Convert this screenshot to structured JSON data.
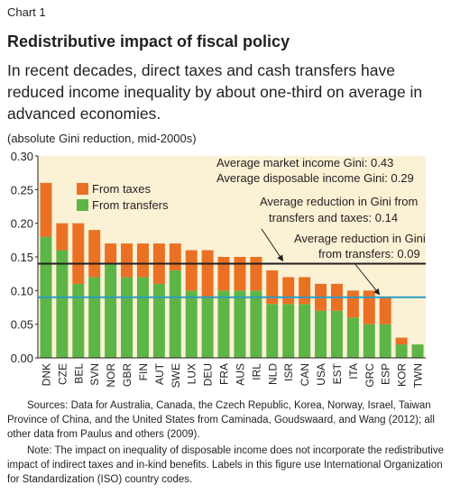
{
  "header": {
    "chart_number": "Chart 1",
    "title": "Redistributive impact of fiscal policy",
    "subtitle": "In recent decades, direct taxes and cash transfers have reduced income inequality by about one-third on average in advanced economies.",
    "units": "(absolute Gini reduction, mid-2000s)"
  },
  "colors": {
    "taxes": "#ea7124",
    "transfers": "#5eb547",
    "market_line": "#231f20",
    "transfers_line": "#2b9cc4",
    "panel": "#fbf1d5"
  },
  "chart_data": {
    "type": "bar",
    "stacked": true,
    "categories": [
      "DNK",
      "CZE",
      "BEL",
      "SVN",
      "NOR",
      "GBR",
      "FIN",
      "AUT",
      "SWE",
      "LUX",
      "DEU",
      "FRA",
      "AUS",
      "IRL",
      "NLD",
      "ISR",
      "CAN",
      "USA",
      "EST",
      "ITA",
      "GRC",
      "ESP",
      "KOR",
      "TWN"
    ],
    "series": [
      {
        "name": "From transfers",
        "values": [
          0.18,
          0.16,
          0.11,
          0.12,
          0.14,
          0.12,
          0.12,
          0.11,
          0.13,
          0.1,
          0.09,
          0.1,
          0.1,
          0.1,
          0.08,
          0.08,
          0.08,
          0.07,
          0.07,
          0.06,
          0.05,
          0.05,
          0.02,
          0.02
        ]
      },
      {
        "name": "From taxes",
        "values": [
          0.08,
          0.04,
          0.09,
          0.07,
          0.03,
          0.05,
          0.05,
          0.06,
          0.04,
          0.06,
          0.07,
          0.05,
          0.05,
          0.05,
          0.05,
          0.04,
          0.04,
          0.04,
          0.04,
          0.04,
          0.05,
          0.04,
          0.01,
          0.0
        ]
      }
    ],
    "ylim": [
      0,
      0.3
    ],
    "yticks": [
      "0.00",
      "0.05",
      "0.10",
      "0.15",
      "0.20",
      "0.25",
      "0.30"
    ],
    "reference_lines": [
      {
        "name": "Average reduction in Gini from transfers and taxes",
        "value": 0.14
      },
      {
        "name": "Average reduction in Gini from transfers",
        "value": 0.09
      }
    ],
    "annotations": {
      "market_gini": "Average market income Gini: 0.43",
      "disposable_gini": "Average disposable income Gini: 0.29",
      "total_reduction_1": "Average reduction in Gini from",
      "total_reduction_2": "transfers and taxes:  0.14",
      "transfer_reduction_1": "Average reduction in Gini",
      "transfer_reduction_2": "from transfers: 0.09"
    },
    "legend": {
      "position": "top-left",
      "entries": [
        "From taxes",
        "From transfers"
      ]
    },
    "grid": false
  },
  "footer": {
    "sources": "Sources: Data for Australia, Canada, the Czech Republic, Korea, Norway, Israel, Taiwan Province of China, and the United States from Caminada, Goudswaard, and Wang (2012); all other data from Paulus and others (2009).",
    "note": "Note: The impact on inequality of disposable income does not incorporate the redistributive impact of indirect taxes and in-kind benefits. Labels in this figure use International Organization for Standardization (ISO) country codes."
  }
}
